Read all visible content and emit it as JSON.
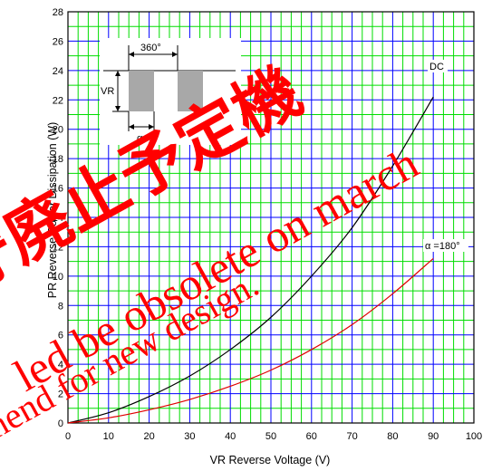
{
  "chart_data": {
    "type": "line",
    "xlabel": "VR    Reverse Voltage   (V)",
    "ylabel": "PR   Reverse Power  Dissipation   (W)",
    "xlim": [
      0,
      100
    ],
    "ylim": [
      0,
      28
    ],
    "x_ticks": [
      "0",
      "10",
      "20",
      "30",
      "40",
      "50",
      "60",
      "70",
      "80",
      "90",
      "100"
    ],
    "y_ticks": [
      "0",
      "2",
      "4",
      "6",
      "8",
      "10",
      "12",
      "14",
      "16",
      "18",
      "20",
      "22",
      "24",
      "26",
      "28"
    ],
    "grid": true,
    "series": [
      {
        "name": "DC",
        "color": "#000000",
        "x": [
          0,
          10,
          20,
          30,
          40,
          50,
          60,
          70,
          80,
          90
        ],
        "y": [
          0,
          0.7,
          1.8,
          3.2,
          5.0,
          7.2,
          10.0,
          13.3,
          17.5,
          22.2
        ]
      },
      {
        "name": "α =180°",
        "color": "#e00000",
        "x": [
          0,
          10,
          20,
          30,
          40,
          50,
          60,
          70,
          80,
          90
        ],
        "y": [
          0,
          0.35,
          0.9,
          1.6,
          2.5,
          3.6,
          5.0,
          6.7,
          8.8,
          11.2
        ]
      }
    ]
  },
  "inset": {
    "period_label": "360°",
    "vr_label": "VR",
    "alpha_label": "α"
  },
  "watermark": {
    "cjk_text": "守廃止予定機",
    "line1": "led be obsolete on march",
    "line2": "nend for new design."
  },
  "colors": {
    "grid_green": "#00dd00",
    "grid_blue": "#0000ff",
    "watermark_red": "#ff0000",
    "inset_fill": "#a8a8a8"
  }
}
